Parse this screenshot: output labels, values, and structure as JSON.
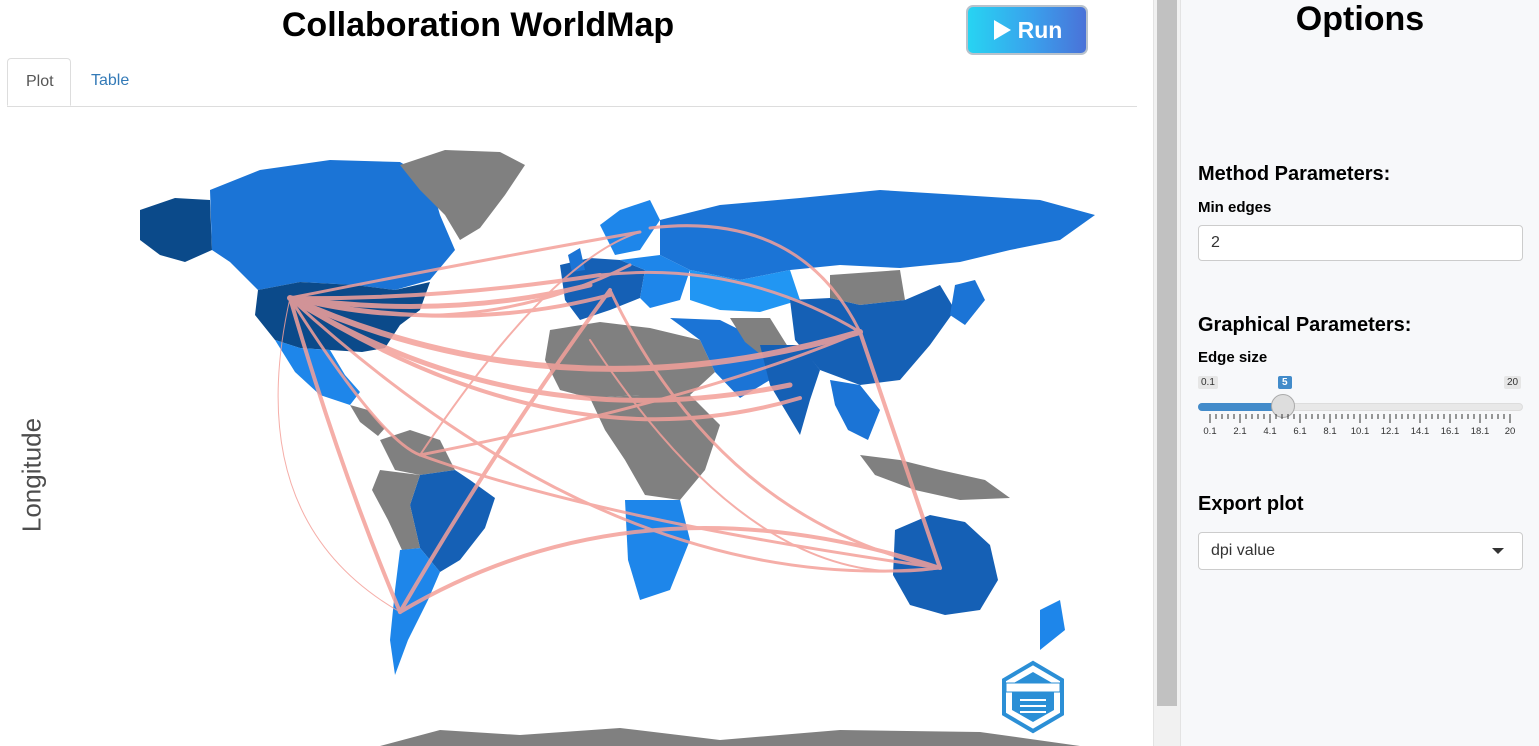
{
  "app": {
    "title": "Collaboration WorldMap",
    "run_label": "Run"
  },
  "tabs": [
    {
      "label": "Plot",
      "active": true
    },
    {
      "label": "Table",
      "active": false
    }
  ],
  "plot": {
    "ylabel": "Longitude",
    "land_color_no_data": "#808080",
    "edge_color": "#f4a09a",
    "country_blues": [
      "#0b4a8a",
      "#1560b5",
      "#1b74d6",
      "#1e86ea",
      "#2196f3"
    ]
  },
  "sidebar": {
    "title": "Options",
    "method_header": "Method Parameters:",
    "min_edges_label": "Min edges",
    "min_edges_value": "2",
    "graphical_header": "Graphical Parameters:",
    "edge_size_label": "Edge size",
    "slider": {
      "min": "0.1",
      "max": "20",
      "value": "5",
      "tick_labels": [
        "0.1",
        "2.1",
        "4.1",
        "6.1",
        "8.1",
        "10.1",
        "12.1",
        "14.1",
        "16.1",
        "18.1",
        "20"
      ]
    },
    "export_header": "Export plot",
    "export_placeholder": "dpi value"
  },
  "icons": {
    "run": "play-icon",
    "logo": "bibliometrix-logo",
    "caret": "chevron-down-icon"
  }
}
